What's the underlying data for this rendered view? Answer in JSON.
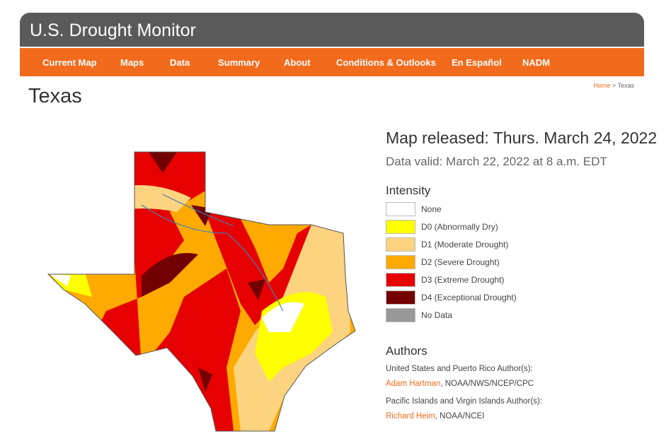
{
  "header": {
    "title": "U.S. Drought Monitor"
  },
  "nav": [
    "Current Map",
    "Maps",
    "Data",
    "Summary",
    "About",
    "Conditions & Outlooks",
    "En Español",
    "NADM"
  ],
  "breadcrumb": {
    "home": "Home",
    "separator": ">",
    "current": "Texas"
  },
  "page": {
    "heading": "Texas",
    "released": "Map released: Thurs. March 24, 2022",
    "valid": "Data valid: March 22, 2022 at 8 a.m. EDT"
  },
  "legend": {
    "title": "Intensity",
    "items": [
      {
        "label": "None",
        "color": "#ffffff"
      },
      {
        "label": "D0 (Abnormally Dry)",
        "color": "#ffff00"
      },
      {
        "label": "D1 (Moderate Drought)",
        "color": "#fcd37f"
      },
      {
        "label": "D2 (Severe Drought)",
        "color": "#ffaa00"
      },
      {
        "label": "D3 (Extreme Drought)",
        "color": "#e60000"
      },
      {
        "label": "D4 (Exceptional Drought)",
        "color": "#730000"
      },
      {
        "label": "No Data",
        "color": "#999999"
      }
    ]
  },
  "authors": {
    "title": "Authors",
    "groups": [
      {
        "heading": "United States and Puerto Rico Author(s):",
        "name": "Adam Hartman",
        "affiliation": ", NOAA/NWS/NCEP/CPC"
      },
      {
        "heading": "Pacific Islands and Virgin Islands Author(s):",
        "name": "Richard Heim",
        "affiliation": ", NOAA/NCEI"
      }
    ]
  }
}
